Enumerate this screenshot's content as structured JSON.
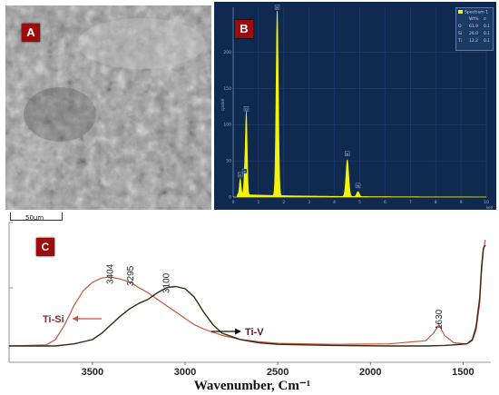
{
  "panel_a": {
    "tag": "A",
    "scale_bar_label": "50µm"
  },
  "panel_b": {
    "tag": "B",
    "legend": {
      "title": "Spectrum 1",
      "header_wt": "Wt%",
      "header_sigma": "σ",
      "rows": [
        {
          "el": "O",
          "wt": "61.9",
          "sigma": "0.1"
        },
        {
          "el": "Si",
          "wt": "26.0",
          "sigma": "0.1"
        },
        {
          "el": "Ti",
          "wt": "12.2",
          "sigma": "0.1"
        }
      ]
    },
    "chart_data": {
      "type": "line",
      "ylabel": "cps/eV",
      "xunit": "keV",
      "xlim": [
        0,
        10
      ],
      "ylim": [
        0,
        200
      ],
      "xticks": [
        "0",
        "1",
        "2",
        "3",
        "4",
        "5",
        "6",
        "7",
        "8",
        "9",
        "10"
      ],
      "yticks": [
        "0",
        "50",
        "100",
        "150",
        "200"
      ],
      "peaks": [
        {
          "label": "C",
          "x": 0.28,
          "y": 22
        },
        {
          "label": "Ti",
          "x": 0.45,
          "y": 27
        },
        {
          "label": "O",
          "x": 0.52,
          "y": 113
        },
        {
          "label": "Si",
          "x": 1.74,
          "y": 258
        },
        {
          "label": "Ti",
          "x": 4.51,
          "y": 51
        },
        {
          "label": "Ti",
          "x": 4.93,
          "y": 7
        }
      ]
    }
  },
  "panel_c": {
    "tag": "C",
    "chart_data": {
      "type": "line",
      "xlabel": "Wavenumber, Cm⁻¹",
      "xlim": [
        3950,
        1350
      ],
      "xticks": [
        3500,
        3000,
        2500,
        2000,
        1500
      ],
      "series": [
        {
          "name": "Ti-Si",
          "color": "#c8563a",
          "x": [
            3950,
            3750,
            3700,
            3650,
            3600,
            3550,
            3500,
            3450,
            3404,
            3350,
            3295,
            3250,
            3200,
            3150,
            3100,
            3050,
            3000,
            2950,
            2900,
            2800,
            2700,
            2600,
            2500,
            2200,
            1900,
            1700,
            1660,
            1630,
            1600,
            1550,
            1480,
            1450,
            1430,
            1410,
            1400,
            1390,
            1380
          ],
          "y": [
            0.0,
            0.01,
            0.06,
            0.2,
            0.38,
            0.52,
            0.6,
            0.64,
            0.65,
            0.63,
            0.6,
            0.55,
            0.5,
            0.44,
            0.38,
            0.32,
            0.26,
            0.2,
            0.16,
            0.1,
            0.06,
            0.04,
            0.025,
            0.015,
            0.02,
            0.05,
            0.12,
            0.2,
            0.1,
            0.03,
            0.02,
            0.05,
            0.15,
            0.4,
            0.7,
            0.9,
            1.0
          ]
        },
        {
          "name": "Ti-V",
          "color": "#3a2a12",
          "x": [
            3950,
            3700,
            3600,
            3500,
            3450,
            3400,
            3350,
            3300,
            3250,
            3200,
            3150,
            3100,
            3050,
            3000,
            2950,
            2900,
            2850,
            2800,
            2700,
            2600,
            2500,
            2200,
            1900,
            1700,
            1600,
            1550,
            1480,
            1450,
            1430,
            1410,
            1400,
            1390,
            1380
          ],
          "y": [
            0.0,
            0.0,
            0.02,
            0.06,
            0.12,
            0.2,
            0.28,
            0.35,
            0.4,
            0.44,
            0.5,
            0.55,
            0.56,
            0.54,
            0.46,
            0.32,
            0.2,
            0.12,
            0.06,
            0.03,
            0.015,
            0.005,
            0.0,
            0.0,
            0.005,
            0.01,
            0.02,
            0.06,
            0.18,
            0.45,
            0.75,
            0.92,
            0.95
          ]
        }
      ],
      "annotations": [
        {
          "text": "3404",
          "x": 3404
        },
        {
          "text": "3295",
          "x": 3295
        },
        {
          "text": "3100",
          "x": 3100
        },
        {
          "text": "1630",
          "x": 1630
        }
      ],
      "legend_labels": {
        "ti_si": "Ti-Si",
        "ti_v": "Ti-V"
      }
    }
  }
}
